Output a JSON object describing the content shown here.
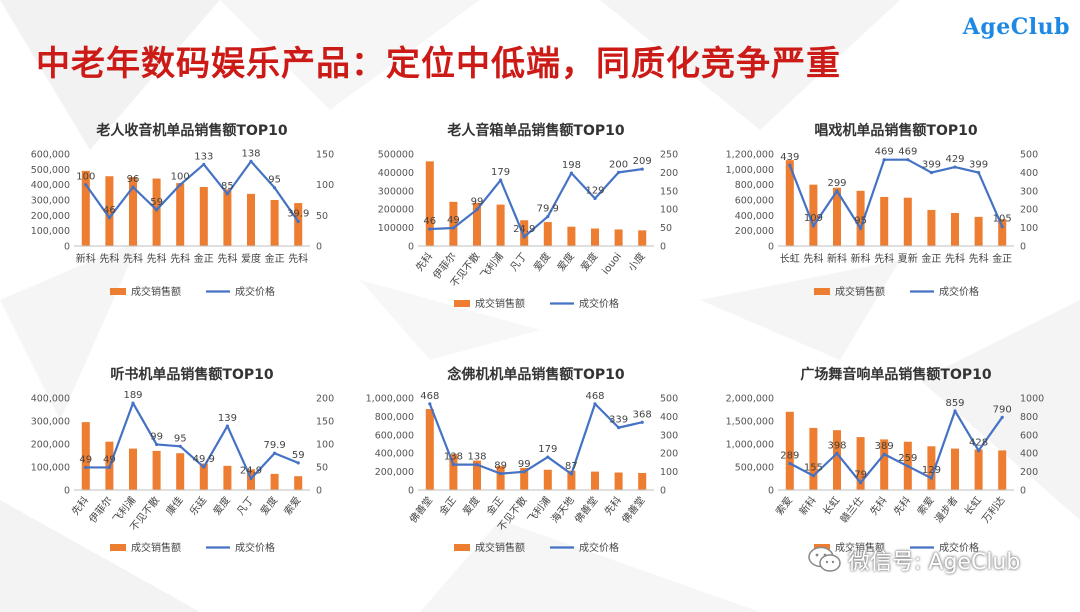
{
  "brand": "AgeClub",
  "page_title": "中老年数码娱乐产品：定位中低端，同质化竞争严重",
  "watermark": "微信号: AgeClub",
  "colors": {
    "bar": "#ed7d31",
    "line": "#4472c4",
    "title": "#cc1b17",
    "brand": "#1e88e5"
  },
  "chart_data": [
    {
      "type": "bar",
      "title": "老人收音机单品销售额TOP10",
      "categories": [
        "新科",
        "先科",
        "先科",
        "先科",
        "先科",
        "金正",
        "先科",
        "爱度",
        "金正",
        "先科"
      ],
      "rotate_ticks": false,
      "series": [
        {
          "name": "成交销售额",
          "type": "bar",
          "axis": "left",
          "values": [
            490000,
            455000,
            450000,
            440000,
            410000,
            385000,
            370000,
            340000,
            300000,
            280000
          ]
        },
        {
          "name": "成交价格",
          "type": "line",
          "axis": "right",
          "values": [
            100,
            46,
            96,
            59,
            100,
            133,
            85,
            138,
            95,
            39.9
          ]
        }
      ],
      "data_labels": [
        "100",
        "46",
        "96",
        "59",
        "100",
        "133",
        "85",
        "138",
        "95",
        "39.9"
      ],
      "y_left": {
        "min": 0,
        "max": 600000,
        "ticks": [
          "0",
          "100,000",
          "200,000",
          "300,000",
          "400,000",
          "500,000",
          "600,000"
        ]
      },
      "y_right": {
        "min": 0,
        "max": 150,
        "ticks": [
          "0",
          "50",
          "100",
          "150"
        ]
      },
      "legend": [
        "成交销售额",
        "成交价格"
      ]
    },
    {
      "type": "bar",
      "title": "老人音箱单品销售额TOP10",
      "categories": [
        "先科",
        "伊菲尔",
        "不见不散",
        "飞利浦",
        "凡丁",
        "爱度",
        "爱度",
        "爱度",
        "iouoi",
        "小度"
      ],
      "rotate_ticks": true,
      "series": [
        {
          "name": "成交销售额",
          "type": "bar",
          "axis": "left",
          "values": [
            460000,
            240000,
            235000,
            225000,
            140000,
            130000,
            105000,
            95000,
            90000,
            85000
          ]
        },
        {
          "name": "成交价格",
          "type": "line",
          "axis": "right",
          "values": [
            46,
            49,
            99,
            179,
            24.9,
            79.9,
            198,
            129,
            200,
            209
          ]
        }
      ],
      "data_labels": [
        "46",
        "49",
        "99",
        "179",
        "24.9",
        "79.9",
        "198",
        "129",
        "200",
        "209"
      ],
      "y_left": {
        "min": 0,
        "max": 500000,
        "ticks": [
          "0",
          "100000",
          "200000",
          "300000",
          "400000",
          "500000"
        ]
      },
      "y_right": {
        "min": 0,
        "max": 250,
        "ticks": [
          "0",
          "50",
          "100",
          "150",
          "200",
          "250"
        ]
      },
      "legend": [
        "成交销售额",
        "成交价格"
      ]
    },
    {
      "type": "bar",
      "title": "唱戏机单品销售额TOP10",
      "categories": [
        "长虹",
        "先科",
        "新科",
        "新科",
        "先科",
        "夏新",
        "金正",
        "先科",
        "先科",
        "金正"
      ],
      "rotate_ticks": false,
      "series": [
        {
          "name": "成交销售额",
          "type": "bar",
          "axis": "left",
          "values": [
            1120000,
            800000,
            760000,
            720000,
            640000,
            630000,
            470000,
            430000,
            380000,
            350000
          ]
        },
        {
          "name": "成交价格",
          "type": "line",
          "axis": "right",
          "values": [
            439,
            109,
            299,
            95,
            469,
            469,
            399,
            429,
            399,
            105
          ]
        }
      ],
      "data_labels": [
        "439",
        "109",
        "299",
        "95",
        "469",
        "469",
        "399",
        "429",
        "399",
        "105"
      ],
      "y_left": {
        "min": 0,
        "max": 1200000,
        "ticks": [
          "0",
          "200,000",
          "400,000",
          "600,000",
          "800,000",
          "1,000,000",
          "1,200,000"
        ]
      },
      "y_right": {
        "min": 0,
        "max": 500,
        "ticks": [
          "0",
          "100",
          "200",
          "300",
          "400",
          "500"
        ]
      },
      "legend": [
        "成交销售额",
        "成交价格"
      ]
    },
    {
      "type": "bar",
      "title": "听书机单品销售额TOP10",
      "categories": [
        "先科",
        "伊菲尔",
        "飞利浦",
        "不见不散",
        "康佳",
        "乐廷",
        "爱度",
        "凡丁",
        "爱度",
        "索爱"
      ],
      "rotate_ticks": true,
      "series": [
        {
          "name": "成交销售额",
          "type": "bar",
          "axis": "left",
          "values": [
            295000,
            210000,
            180000,
            170000,
            160000,
            115000,
            105000,
            90000,
            70000,
            60000
          ]
        },
        {
          "name": "成交价格",
          "type": "line",
          "axis": "right",
          "values": [
            49,
            49,
            189,
            99,
            95,
            49.9,
            139,
            24.9,
            79.9,
            59
          ]
        }
      ],
      "data_labels": [
        "49",
        "49",
        "189",
        "99",
        "95",
        "49.9",
        "139",
        "24.9",
        "79.9",
        "59"
      ],
      "y_left": {
        "min": 0,
        "max": 400000,
        "ticks": [
          "0",
          "100,000",
          "200,000",
          "300,000",
          "400,000"
        ]
      },
      "y_right": {
        "min": 0,
        "max": 200,
        "ticks": [
          "0",
          "50",
          "100",
          "150",
          "200"
        ]
      },
      "legend": [
        "成交销售额",
        "成交价格"
      ]
    },
    {
      "type": "bar",
      "title": "念佛机机单品销售额TOP10",
      "categories": [
        "佛善堂",
        "金正",
        "爱度",
        "金正",
        "不见不散",
        "飞利浦",
        "海天地",
        "佛善堂",
        "先科",
        "佛善堂"
      ],
      "rotate_ticks": true,
      "series": [
        {
          "name": "成交销售额",
          "type": "bar",
          "axis": "left",
          "values": [
            880000,
            390000,
            320000,
            260000,
            240000,
            220000,
            210000,
            200000,
            190000,
            185000
          ]
        },
        {
          "name": "成交价格",
          "type": "line",
          "axis": "right",
          "values": [
            468,
            138,
            138,
            89,
            99,
            179,
            87,
            468,
            339,
            368
          ]
        }
      ],
      "data_labels": [
        "468",
        "138",
        "138",
        "89",
        "99",
        "179",
        "87",
        "468",
        "339",
        "368"
      ],
      "y_left": {
        "min": 0,
        "max": 1000000,
        "ticks": [
          "0",
          "200,000",
          "400,000",
          "600,000",
          "800,000",
          "1,000,000"
        ]
      },
      "y_right": {
        "min": 0,
        "max": 500,
        "ticks": [
          "0",
          "100",
          "200",
          "300",
          "400",
          "500"
        ]
      },
      "legend": [
        "成交销售额",
        "成交价格"
      ]
    },
    {
      "type": "bar",
      "title": "广场舞音响单品销售额TOP10",
      "categories": [
        "索爱",
        "新科",
        "长虹",
        "赣兰仕",
        "先科",
        "先科",
        "索爱",
        "漫步者",
        "长虹",
        "万利达"
      ],
      "rotate_ticks": true,
      "series": [
        {
          "name": "成交销售额",
          "type": "bar",
          "axis": "left",
          "values": [
            1700000,
            1350000,
            1300000,
            1150000,
            1100000,
            1050000,
            950000,
            900000,
            880000,
            860000
          ]
        },
        {
          "name": "成交价格",
          "type": "line",
          "axis": "right",
          "values": [
            289,
            155,
            398,
            79,
            389,
            259,
            129,
            859,
            428,
            790
          ]
        }
      ],
      "data_labels": [
        "289",
        "155",
        "398",
        "79",
        "389",
        "259",
        "129",
        "859",
        "428",
        "790"
      ],
      "y_left": {
        "min": 0,
        "max": 2000000,
        "ticks": [
          "0",
          "500,000",
          "1,000,000",
          "1,500,000",
          "2,000,000"
        ]
      },
      "y_right": {
        "min": 0,
        "max": 1000,
        "ticks": [
          "0",
          "200",
          "400",
          "600",
          "800",
          "1000"
        ]
      },
      "legend": [
        "成交销售额",
        "成交价格"
      ]
    }
  ]
}
